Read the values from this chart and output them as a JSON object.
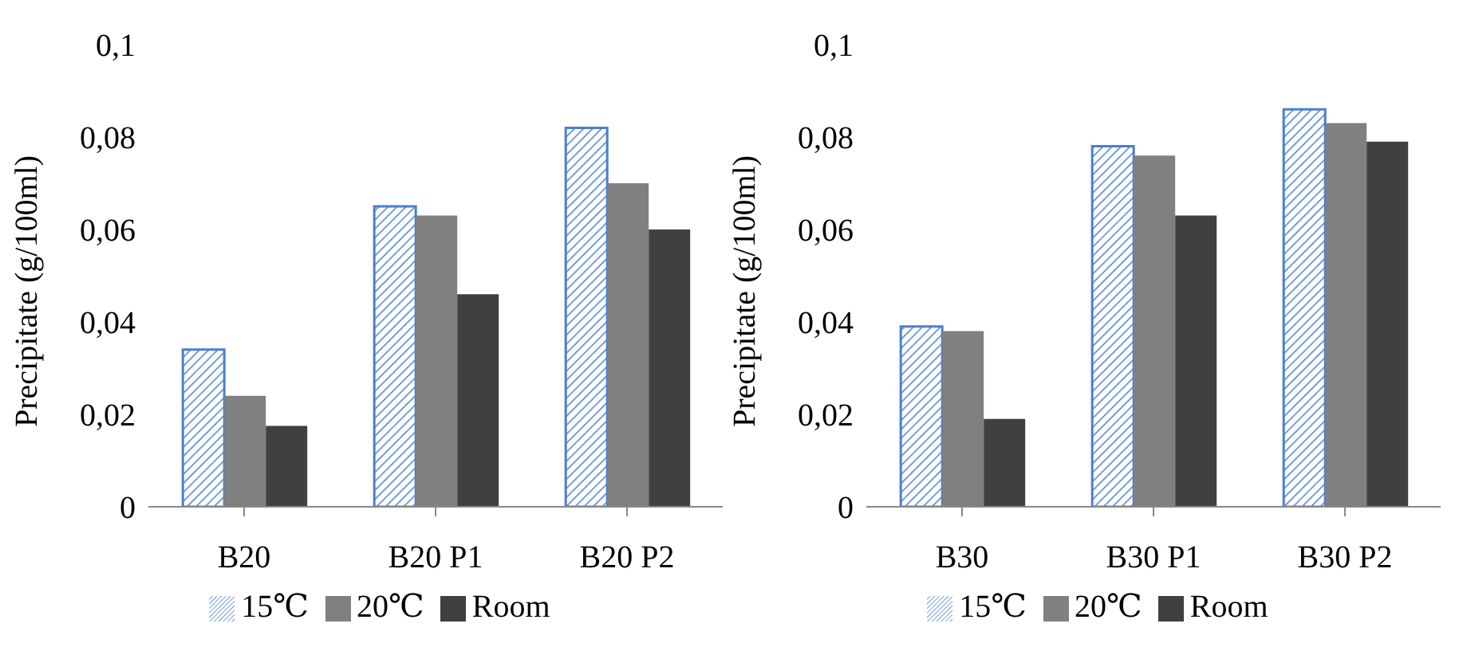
{
  "chart_data": [
    {
      "type": "bar",
      "ylabel": "Precipitate (g/100ml)",
      "categories": [
        "B20",
        "B20 P1",
        "B20 P2"
      ],
      "series": [
        {
          "name": "15℃",
          "color": "#4a7fd0",
          "values": [
            0.034,
            0.065,
            0.082
          ]
        },
        {
          "name": "20℃",
          "color": "#808080",
          "values": [
            0.024,
            0.063,
            0.07
          ]
        },
        {
          "name": "Room",
          "color": "#404040",
          "values": [
            0.0175,
            0.046,
            0.06
          ]
        }
      ],
      "ylim": [
        0,
        0.1
      ],
      "yticks": [
        {
          "value": 0,
          "label": "0"
        },
        {
          "value": 0.02,
          "label": "0,02"
        },
        {
          "value": 0.04,
          "label": "0,04"
        },
        {
          "value": 0.06,
          "label": "0,06"
        },
        {
          "value": 0.08,
          "label": "0,08"
        },
        {
          "value": 0.1,
          "label": "0,1"
        }
      ],
      "grid": false,
      "legend": "bottom"
    },
    {
      "type": "bar",
      "ylabel": "Precipitate (g/100ml)",
      "categories": [
        "B30",
        "B30 P1",
        "B30 P2"
      ],
      "series": [
        {
          "name": "15℃",
          "color": "#4a7fd0",
          "values": [
            0.039,
            0.078,
            0.086
          ]
        },
        {
          "name": "20℃",
          "color": "#808080",
          "values": [
            0.038,
            0.076,
            0.083
          ]
        },
        {
          "name": "Room",
          "color": "#404040",
          "values": [
            0.019,
            0.063,
            0.079
          ]
        }
      ],
      "ylim": [
        0,
        0.1
      ],
      "yticks": [
        {
          "value": 0,
          "label": "0"
        },
        {
          "value": 0.02,
          "label": "0,02"
        },
        {
          "value": 0.04,
          "label": "0,04"
        },
        {
          "value": 0.06,
          "label": "0,06"
        },
        {
          "value": 0.08,
          "label": "0,08"
        },
        {
          "value": 0.1,
          "label": "0,1"
        }
      ],
      "grid": false,
      "legend": "bottom"
    }
  ]
}
